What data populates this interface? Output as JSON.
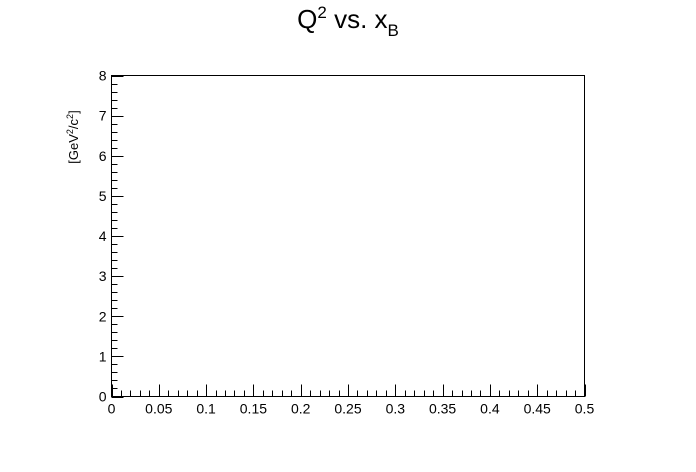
{
  "chart_data": {
    "type": "scatter",
    "title": {
      "base": "Q",
      "sup": "2",
      "middle": " vs. x",
      "sub": "B"
    },
    "ylabel": {
      "p1": "[GeV",
      "sup1": "2",
      "p2": "/c",
      "sup2": "2",
      "p3": "]"
    },
    "xlabel": "",
    "xlim": [
      0,
      0.5
    ],
    "ylim": [
      0,
      8
    ],
    "x_ticks": [
      "0",
      "0.05",
      "0.1",
      "0.15",
      "0.2",
      "0.25",
      "0.3",
      "0.35",
      "0.4",
      "0.45",
      "0.5"
    ],
    "y_ticks": [
      "0",
      "1",
      "2",
      "3",
      "4",
      "5",
      "6",
      "7",
      "8"
    ],
    "x_minor_per_major": 5,
    "y_minor_per_major": 5,
    "grid": false,
    "points": []
  }
}
